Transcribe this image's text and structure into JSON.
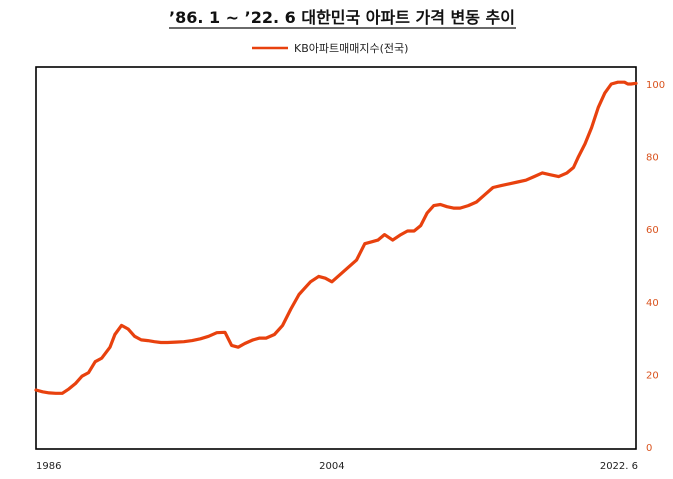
{
  "chart_data": {
    "type": "line",
    "title": "’86. 1 ~ ’22. 6 대한민국 아파트 가격 변동 추이",
    "xlabel": "",
    "ylabel": "",
    "legend_position": "top-center",
    "grid": false,
    "xlim": [
      1986.0,
      2022.5
    ],
    "ylim": [
      0,
      100
    ],
    "y_axis_side": "right",
    "y_ticks": [
      0,
      20,
      40,
      60,
      80,
      100
    ],
    "x_tick_labels": [
      {
        "x": 1986.0,
        "label": "1986"
      },
      {
        "x": 2004.0,
        "label": "2004"
      },
      {
        "x": 2022.5,
        "label": "2022. 6"
      }
    ],
    "series": [
      {
        "name": "KB아파트매매지수(전국)",
        "color": "#e8410e",
        "x": [
          1986.0,
          1986.4,
          1986.8,
          1987.2,
          1987.6,
          1988.0,
          1988.4,
          1988.8,
          1989.2,
          1989.6,
          1990.0,
          1990.5,
          1990.8,
          1991.2,
          1991.6,
          1992.0,
          1992.4,
          1992.8,
          1993.2,
          1993.6,
          1994.0,
          1994.5,
          1995.0,
          1995.5,
          1996.0,
          1996.5,
          1997.0,
          1997.5,
          1997.9,
          1998.3,
          1998.7,
          1999.2,
          1999.6,
          2000.0,
          2000.5,
          2001.0,
          2001.5,
          2002.0,
          2002.3,
          2002.7,
          2003.2,
          2003.6,
          2004.0,
          2004.5,
          2005.0,
          2005.5,
          2006.0,
          2006.4,
          2006.8,
          2007.2,
          2007.7,
          2008.2,
          2008.6,
          2009.0,
          2009.4,
          2009.8,
          2010.2,
          2010.6,
          2011.0,
          2011.4,
          2011.8,
          2012.3,
          2012.8,
          2013.3,
          2013.8,
          2014.3,
          2014.8,
          2015.3,
          2015.8,
          2016.3,
          2016.8,
          2017.3,
          2017.8,
          2018.3,
          2018.7,
          2019.0,
          2019.4,
          2019.8,
          2020.2,
          2020.6,
          2021.0,
          2021.4,
          2021.8,
          2022.0,
          2022.2,
          2022.5
        ],
        "values": [
          15.7,
          15.2,
          14.9,
          14.8,
          14.8,
          16.0,
          17.5,
          19.5,
          20.5,
          23.5,
          24.5,
          27.5,
          31.0,
          33.5,
          32.5,
          30.5,
          29.5,
          29.3,
          29.0,
          28.8,
          28.8,
          28.9,
          29.0,
          29.3,
          29.8,
          30.5,
          31.5,
          31.6,
          28.0,
          27.5,
          28.5,
          29.5,
          30.0,
          30.0,
          31.0,
          33.5,
          38.0,
          42.0,
          43.5,
          45.5,
          47.0,
          46.5,
          45.5,
          47.5,
          49.5,
          51.5,
          56.0,
          56.5,
          57.0,
          58.5,
          57.0,
          58.5,
          59.5,
          59.5,
          61.0,
          64.5,
          66.5,
          66.8,
          66.2,
          65.8,
          65.8,
          66.5,
          67.5,
          69.5,
          71.5,
          72.0,
          72.5,
          73.0,
          73.5,
          74.5,
          75.5,
          75.0,
          74.5,
          75.5,
          77.0,
          80.0,
          83.5,
          88.0,
          93.5,
          97.5,
          100.0,
          100.5,
          100.5,
          100.0,
          100.0,
          100.2
        ]
      }
    ]
  }
}
